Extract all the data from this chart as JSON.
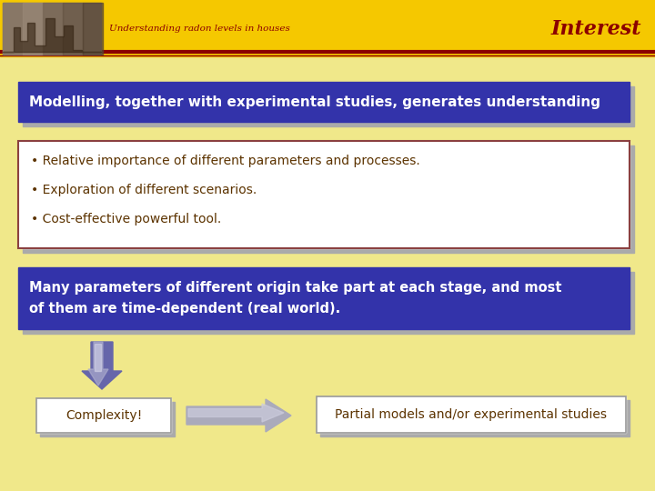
{
  "bg_color": "#F0E88A",
  "header_bg": "#F5C800",
  "header_line_color": "#8B0000",
  "header_subtitle": "Understanding radon levels in houses",
  "header_title": "Interest",
  "header_subtitle_color": "#8B0000",
  "header_title_color": "#8B0000",
  "box1_bg": "#3333AA",
  "box1_text": "Modelling, together with experimental studies, generates understanding",
  "box1_text_color": "#FFFFFF",
  "box2_bg": "#FFFFFF",
  "box2_border": "#8B4040",
  "box2_bullets": [
    "Relative importance of different parameters and processes.",
    "Exploration of different scenarios.",
    "Cost-effective powerful tool."
  ],
  "box2_text_color": "#5C3300",
  "box3_bg": "#3333AA",
  "box3_text": "Many parameters of different origin take part at each stage, and most\nof them are time-dependent (real world).",
  "box3_text_color": "#FFFFFF",
  "box4_text": "Complexity!",
  "box4_text_color": "#5C3300",
  "box5_text": "Partial models and/or experimental studies",
  "box5_text_color": "#5C3300",
  "shadow_color": "#AAAAAA",
  "img_bg": "#887766"
}
